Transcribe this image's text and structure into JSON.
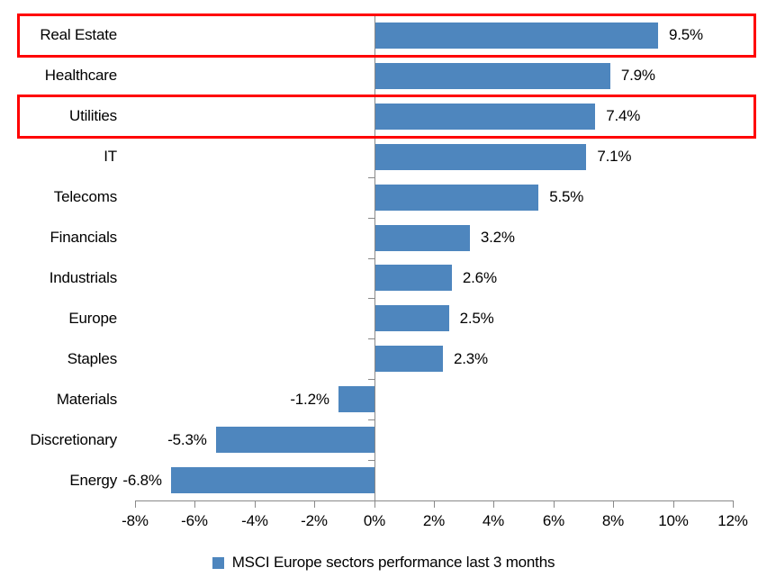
{
  "chart_data": {
    "type": "bar",
    "orientation": "horizontal",
    "title": "",
    "categories": [
      "Real Estate",
      "Healthcare",
      "Utilities",
      "IT",
      "Telecoms",
      "Financials",
      "Industrials",
      "Europe",
      "Staples",
      "Materials",
      "Discretionary",
      "Energy"
    ],
    "values": [
      9.5,
      7.9,
      7.4,
      7.1,
      5.5,
      3.2,
      2.6,
      2.5,
      2.3,
      -1.2,
      -5.3,
      -6.8
    ],
    "value_labels": [
      "9.5%",
      "7.9%",
      "7.4%",
      "7.1%",
      "5.5%",
      "3.2%",
      "2.6%",
      "2.5%",
      "2.3%",
      "-1.2%",
      "-5.3%",
      "-6.8%"
    ],
    "xlim": [
      -8,
      12
    ],
    "x_tick_values": [
      -8,
      -6,
      -4,
      -2,
      0,
      2,
      4,
      6,
      8,
      10,
      12
    ],
    "x_tick_labels": [
      "-8%",
      "-6%",
      "-4%",
      "-2%",
      "0%",
      "2%",
      "4%",
      "6%",
      "8%",
      "10%",
      "12%"
    ],
    "grid": false,
    "bar_color": "#4E86BE",
    "axis_color": "#898989",
    "legend": {
      "label": "MSCI Europe sectors performance last 3 months",
      "marker_color": "#4E86BE",
      "position": "bottom-center"
    },
    "highlights": {
      "color": "#FF0000",
      "categories": [
        "Real Estate",
        "Utilities"
      ]
    }
  }
}
